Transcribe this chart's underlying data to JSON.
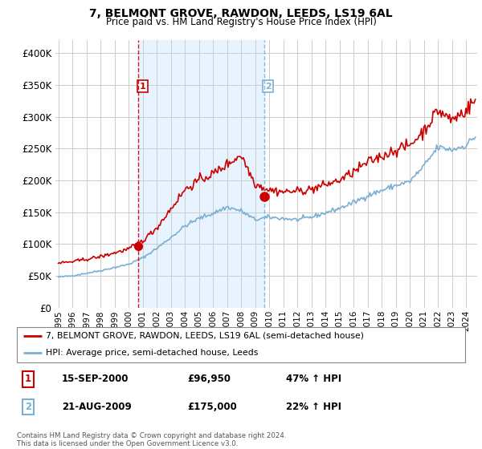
{
  "title": "7, BELMONT GROVE, RAWDON, LEEDS, LS19 6AL",
  "subtitle": "Price paid vs. HM Land Registry's House Price Index (HPI)",
  "legend_line1": "7, BELMONT GROVE, RAWDON, LEEDS, LS19 6AL (semi-detached house)",
  "legend_line2": "HPI: Average price, semi-detached house, Leeds",
  "footnote": "Contains HM Land Registry data © Crown copyright and database right 2024.\nThis data is licensed under the Open Government Licence v3.0.",
  "transaction1_date": "15-SEP-2000",
  "transaction1_price": "£96,950",
  "transaction1_hpi": "47% ↑ HPI",
  "transaction2_date": "21-AUG-2009",
  "transaction2_price": "£175,000",
  "transaction2_hpi": "22% ↑ HPI",
  "vline1_x": 2000.71,
  "vline2_x": 2009.63,
  "marker1_x": 2000.71,
  "marker1_y": 96950,
  "marker2_x": 2009.63,
  "marker2_y": 175000,
  "ylim": [
    0,
    420000
  ],
  "xlim": [
    1994.8,
    2024.8
  ],
  "property_color": "#cc0000",
  "hpi_color": "#7ab0d4",
  "background_color": "#ffffff",
  "plot_bg_color": "#ffffff",
  "grid_color": "#cccccc",
  "shade_color": "#ddeeff",
  "vline1_color": "#cc0000",
  "vline2_color": "#7ab0d4",
  "label1_color": "#cc0000",
  "label2_color": "#7ab0d4"
}
